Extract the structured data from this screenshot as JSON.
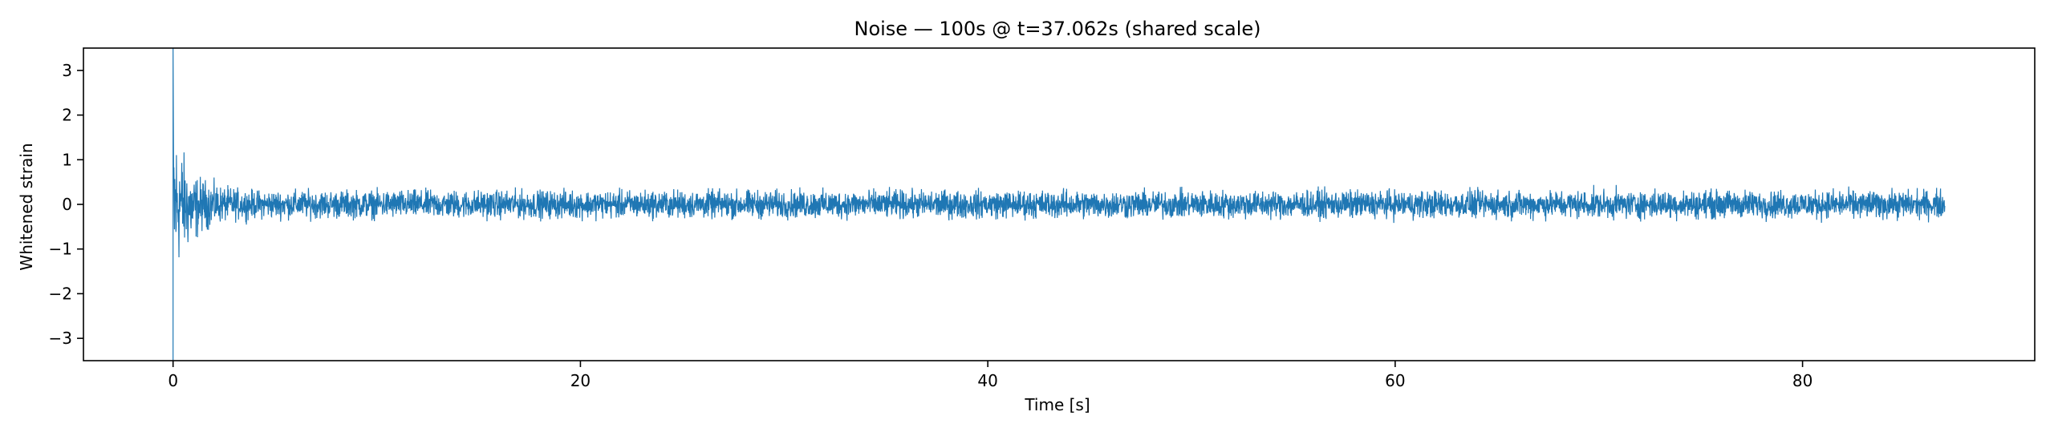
{
  "chart_data": {
    "type": "line",
    "title": "Noise — 100s @ t=37.062s (shared scale)",
    "xlabel": "Time [s]",
    "ylabel": "Whitened strain",
    "xlim": [
      -4.4,
      91.4
    ],
    "ylim": [
      -3.5,
      3.5
    ],
    "x_ticks": [
      0,
      20,
      40,
      60,
      80
    ],
    "x_tick_labels": [
      "0",
      "20",
      "40",
      "60",
      "80"
    ],
    "y_ticks": [
      -3,
      -2,
      -1,
      0,
      1,
      2,
      3
    ],
    "y_tick_labels": [
      "−3",
      "−2",
      "−1",
      "0",
      "1",
      "2",
      "3"
    ],
    "grid": false,
    "legend": "none",
    "series": [
      {
        "color": "#1f77b4",
        "x_range": [
          0,
          87
        ],
        "samples": [
          {
            "t": 0.0,
            "min": -3.5,
            "max": 3.5
          },
          {
            "t": 0.1,
            "min": -2.7,
            "max": 2.6
          },
          {
            "t": 0.3,
            "min": -1.9,
            "max": 2.0
          },
          {
            "t": 0.6,
            "min": -1.5,
            "max": 1.45
          },
          {
            "t": 1.0,
            "min": -1.2,
            "max": 1.0
          },
          {
            "t": 1.5,
            "min": -0.8,
            "max": 0.8
          },
          {
            "t": 2.5,
            "min": -0.55,
            "max": 0.55
          },
          {
            "t": 4.0,
            "min": -0.45,
            "max": 0.45
          },
          {
            "t": 87.0,
            "min": -0.45,
            "max": 0.45
          }
        ]
      }
    ]
  }
}
